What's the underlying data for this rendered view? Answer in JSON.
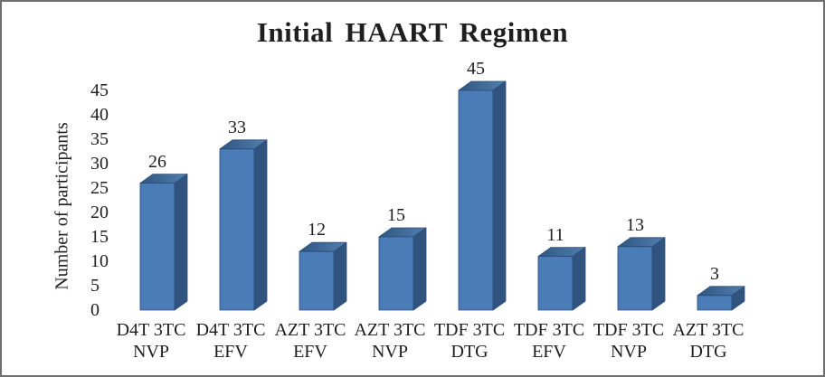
{
  "chart_data": {
    "type": "bar",
    "style": "3d",
    "title": "Initial HAART Regimen",
    "xlabel": "",
    "ylabel": "Number of participants",
    "categories": [
      {
        "line1": "D4T 3TC",
        "line2": "NVP"
      },
      {
        "line1": "D4T 3TC",
        "line2": "EFV"
      },
      {
        "line1": "AZT 3TC",
        "line2": "EFV"
      },
      {
        "line1": "AZT 3TC",
        "line2": "NVP"
      },
      {
        "line1": "TDF 3TC",
        "line2": "DTG"
      },
      {
        "line1": "TDF 3TC",
        "line2": "EFV"
      },
      {
        "line1": "TDF 3TC",
        "line2": "NVP"
      },
      {
        "line1": "AZT 3TC",
        "line2": "DTG"
      }
    ],
    "values": [
      26,
      33,
      12,
      15,
      45,
      11,
      13,
      3
    ],
    "data_labels": [
      "26",
      "33",
      "12",
      "15",
      "45",
      "11",
      "13",
      "3"
    ],
    "yticks": [
      0,
      5,
      10,
      15,
      20,
      25,
      30,
      35,
      40,
      45
    ],
    "ylim": [
      0,
      45
    ],
    "grid": false,
    "legend_position": "none",
    "colors": {
      "bar_front": "#4A7CB8",
      "bar_side": "#315380",
      "bar_top_dark": "#2E567F",
      "bar_top_light": "#527FB0",
      "bar_edge": "#2B4B74",
      "text": "#1F1F1F",
      "background": "#FFFFFF",
      "frame_border": "#6F6F6F"
    }
  }
}
